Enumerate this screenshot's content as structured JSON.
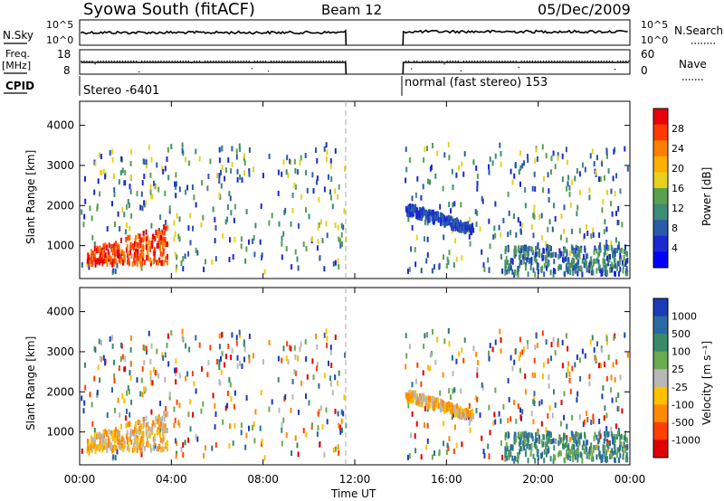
{
  "header": {
    "station": "Syowa South (fitACF)",
    "beam": "Beam 12",
    "date": "05/Dec/2009"
  },
  "top_panels": {
    "nsky_label": "N.Sky",
    "nsky_ticks": [
      "10^5",
      "10^0"
    ],
    "nsky_right_ticks": [
      "10^5",
      "10^0"
    ],
    "nsearch_label": "N.Search",
    "freq_label": "Freq.",
    "freq_unit": "[MHz]",
    "freq_ticks": [
      "18",
      "8"
    ],
    "nave_ticks": [
      "60",
      "0"
    ],
    "nave_label": "Nave",
    "cpid_label": "CPID",
    "cpid_segments": [
      "Stereo -6401",
      "normal (fast stereo) 153"
    ]
  },
  "axes": {
    "ylabel": "Slant Range [km]",
    "xlabel": "Time UT",
    "yticks": [
      "1000",
      "2000",
      "3000",
      "4000"
    ],
    "xticks": [
      "00:00",
      "04:00",
      "08:00",
      "12:00",
      "16:00",
      "20:00",
      "00:00"
    ]
  },
  "colorbars": {
    "power": {
      "label": "Power [dB]",
      "ticks": [
        "28",
        "24",
        "20",
        "16",
        "12",
        "8",
        "4"
      ],
      "colors": [
        "#e8000b",
        "#ff3b00",
        "#ff7f00",
        "#ffb000",
        "#e6d21e",
        "#5aa050",
        "#3c8c78",
        "#2a5aa8",
        "#1a2ad0",
        "#0000ff"
      ]
    },
    "velocity": {
      "label": "Velocity [m s⁻¹]",
      "ticks": [
        "1000",
        "500",
        "100",
        "25",
        "-25",
        "-100",
        "-500",
        "-1000"
      ],
      "colors": [
        "#1a3ab8",
        "#2a6aa0",
        "#3a8a6a",
        "#6aaa50",
        "#b8b8b8",
        "#ffc000",
        "#ff8a00",
        "#ff4000",
        "#e00000"
      ]
    }
  },
  "chart_data": {
    "type": "heatmap",
    "x_range_hours": [
      0,
      24
    ],
    "y_range_km": [
      180,
      4600
    ],
    "data_gap_hours": [
      11.6,
      14.1
    ],
    "cpid_change_hour": 14.1,
    "panels": [
      "Power",
      "Velocity"
    ]
  }
}
